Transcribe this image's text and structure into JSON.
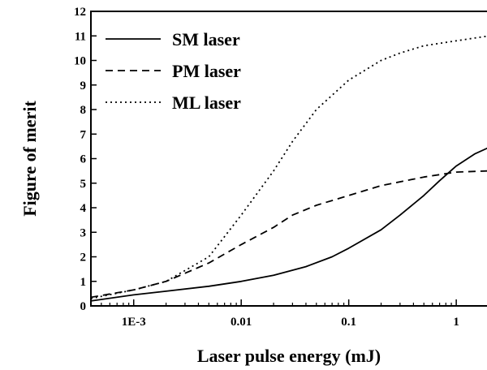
{
  "chart_data": {
    "type": "line",
    "xlabel": "Laser pulse energy (mJ)",
    "ylabel": "Figure of merit",
    "x_scale": "log",
    "xlim": [
      0.0004,
      2
    ],
    "ylim": [
      0,
      12
    ],
    "x_ticks": [
      {
        "value": 0.001,
        "label": "1E-3"
      },
      {
        "value": 0.01,
        "label": "0.01"
      },
      {
        "value": 0.1,
        "label": "0.1"
      },
      {
        "value": 1,
        "label": "1"
      }
    ],
    "y_ticks": [
      0,
      1,
      2,
      3,
      4,
      5,
      6,
      7,
      8,
      9,
      10,
      11,
      12
    ],
    "grid": false,
    "legend_position": "top-left",
    "series": [
      {
        "name": "SM laser",
        "style": "solid",
        "points": [
          [
            0.0004,
            0.2
          ],
          [
            0.001,
            0.45
          ],
          [
            0.002,
            0.6
          ],
          [
            0.005,
            0.8
          ],
          [
            0.01,
            1.0
          ],
          [
            0.02,
            1.25
          ],
          [
            0.04,
            1.6
          ],
          [
            0.07,
            2.0
          ],
          [
            0.1,
            2.35
          ],
          [
            0.2,
            3.1
          ],
          [
            0.3,
            3.7
          ],
          [
            0.5,
            4.5
          ],
          [
            0.7,
            5.1
          ],
          [
            1.0,
            5.7
          ],
          [
            1.5,
            6.2
          ],
          [
            2.0,
            6.45
          ]
        ]
      },
      {
        "name": "PM laser",
        "style": "dashed",
        "points": [
          [
            0.0004,
            0.35
          ],
          [
            0.001,
            0.65
          ],
          [
            0.002,
            1.0
          ],
          [
            0.005,
            1.75
          ],
          [
            0.01,
            2.5
          ],
          [
            0.02,
            3.2
          ],
          [
            0.03,
            3.7
          ],
          [
            0.05,
            4.1
          ],
          [
            0.1,
            4.5
          ],
          [
            0.2,
            4.9
          ],
          [
            0.5,
            5.25
          ],
          [
            1.0,
            5.45
          ],
          [
            2.0,
            5.5
          ]
        ]
      },
      {
        "name": "ML laser",
        "style": "dotted",
        "points": [
          [
            0.0004,
            0.3
          ],
          [
            0.001,
            0.65
          ],
          [
            0.002,
            1.0
          ],
          [
            0.005,
            2.0
          ],
          [
            0.01,
            3.7
          ],
          [
            0.02,
            5.5
          ],
          [
            0.03,
            6.7
          ],
          [
            0.05,
            8.0
          ],
          [
            0.1,
            9.2
          ],
          [
            0.2,
            10.0
          ],
          [
            0.3,
            10.3
          ],
          [
            0.5,
            10.6
          ],
          [
            1.0,
            10.8
          ],
          [
            2.0,
            11.0
          ]
        ]
      }
    ]
  }
}
